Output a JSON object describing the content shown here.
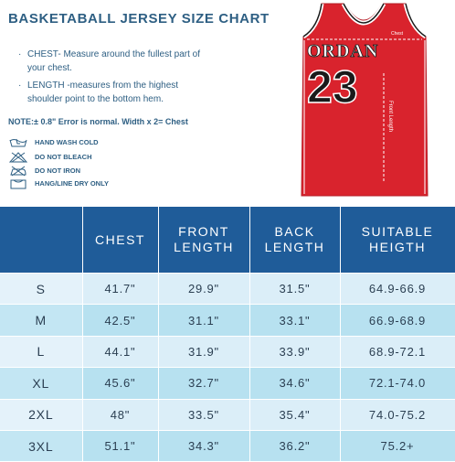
{
  "header": {
    "title": "BASKETABALL JERSEY SIZE CHART"
  },
  "instructions": {
    "chest_text": "CHEST- Measure around the fullest part of your chest.",
    "length_text": "LENGTH -measures from the highest shoulder point to the bottom hem.",
    "note": "NOTE:± 0.8\" Error is normal. Width x 2= Chest"
  },
  "care": {
    "hand_wash": "HAND WASH COLD",
    "no_bleach": "DO NOT BLEACH",
    "no_iron": "DO NOT IRON",
    "hang_dry": "HANG/LINE DRY ONLY"
  },
  "jersey": {
    "name": "ORDAN",
    "number": "23",
    "chest_label": "Chest",
    "length_label": "Front Length",
    "color": "#d9232d",
    "trim_color": "#ffffff",
    "accent_color": "#1a1a1a"
  },
  "table": {
    "headers": [
      "",
      "CHEST",
      "FRONT\nLENGTH",
      "BACK\nLENGTH",
      "SUITABLE\nHEIGTH"
    ],
    "rows": [
      [
        "S",
        "41.7\"",
        "29.9\"",
        "31.5\"",
        "64.9-66.9"
      ],
      [
        "M",
        "42.5\"",
        "31.1\"",
        "33.1\"",
        "66.9-68.9"
      ],
      [
        "L",
        "44.1\"",
        "31.9\"",
        "33.9\"",
        "68.9-72.1"
      ],
      [
        "XL",
        "45.6\"",
        "32.7\"",
        "34.6\"",
        "72.1-74.0"
      ],
      [
        "2XL",
        "48\"",
        "33.5\"",
        "35.4\"",
        "74.0-75.2"
      ],
      [
        "3XL",
        "51.1\"",
        "34.3\"",
        "36.2\"",
        "75.2+"
      ]
    ],
    "header_color": "#1f5c99"
  }
}
